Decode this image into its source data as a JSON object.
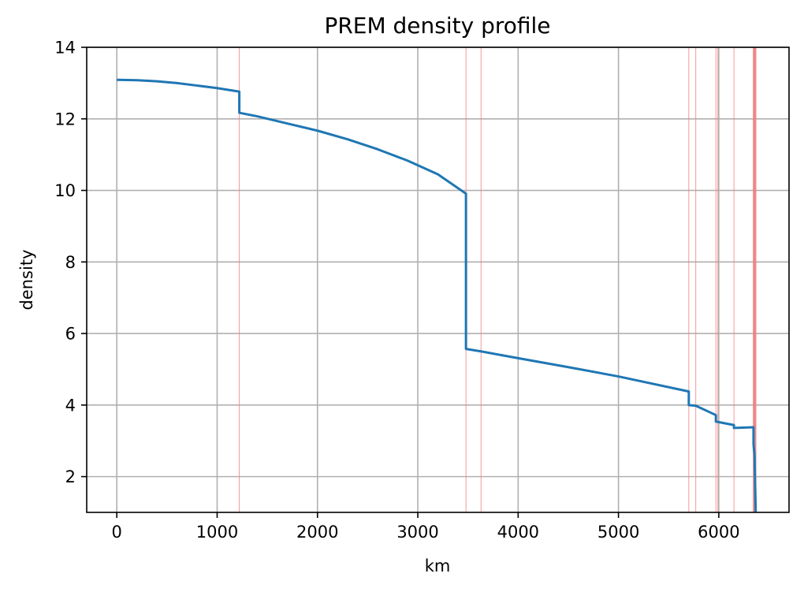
{
  "chart_data": {
    "type": "line",
    "title": "PREM density profile",
    "xlabel": "km",
    "ylabel": "density",
    "xlim": [
      -300,
      6700
    ],
    "ylim": [
      1,
      14
    ],
    "xticks": [
      0,
      1000,
      2000,
      3000,
      4000,
      5000,
      6000
    ],
    "yticks": [
      2,
      4,
      6,
      8,
      10,
      12,
      14
    ],
    "grid": true,
    "series": [
      {
        "color": "#1f77b4",
        "points": [
          [
            0,
            13.09
          ],
          [
            200,
            13.08
          ],
          [
            400,
            13.05
          ],
          [
            600,
            13.0
          ],
          [
            800,
            12.93
          ],
          [
            1000,
            12.86
          ],
          [
            1221,
            12.76
          ],
          [
            1221,
            12.17
          ],
          [
            1400,
            12.07
          ],
          [
            1700,
            11.87
          ],
          [
            2000,
            11.67
          ],
          [
            2300,
            11.43
          ],
          [
            2600,
            11.15
          ],
          [
            2900,
            10.83
          ],
          [
            3200,
            10.45
          ],
          [
            3480,
            9.91
          ],
          [
            3480,
            5.57
          ],
          [
            3630,
            5.5
          ],
          [
            4000,
            5.31
          ],
          [
            4500,
            5.06
          ],
          [
            5000,
            4.8
          ],
          [
            5701,
            4.38
          ],
          [
            5701,
            4.0
          ],
          [
            5771,
            3.98
          ],
          [
            5971,
            3.72
          ],
          [
            5971,
            3.54
          ],
          [
            6151,
            3.44
          ],
          [
            6151,
            3.36
          ],
          [
            6346,
            3.38
          ],
          [
            6346,
            2.9
          ],
          [
            6356,
            2.6
          ],
          [
            6368,
            1.02
          ]
        ]
      }
    ],
    "discontinuities": {
      "color": "#f08080",
      "thin_lines": [
        1221,
        3480,
        3630,
        5701,
        5771,
        5971,
        5991,
        6151
      ],
      "thick_lines": [
        6346,
        6356,
        6368
      ]
    }
  }
}
